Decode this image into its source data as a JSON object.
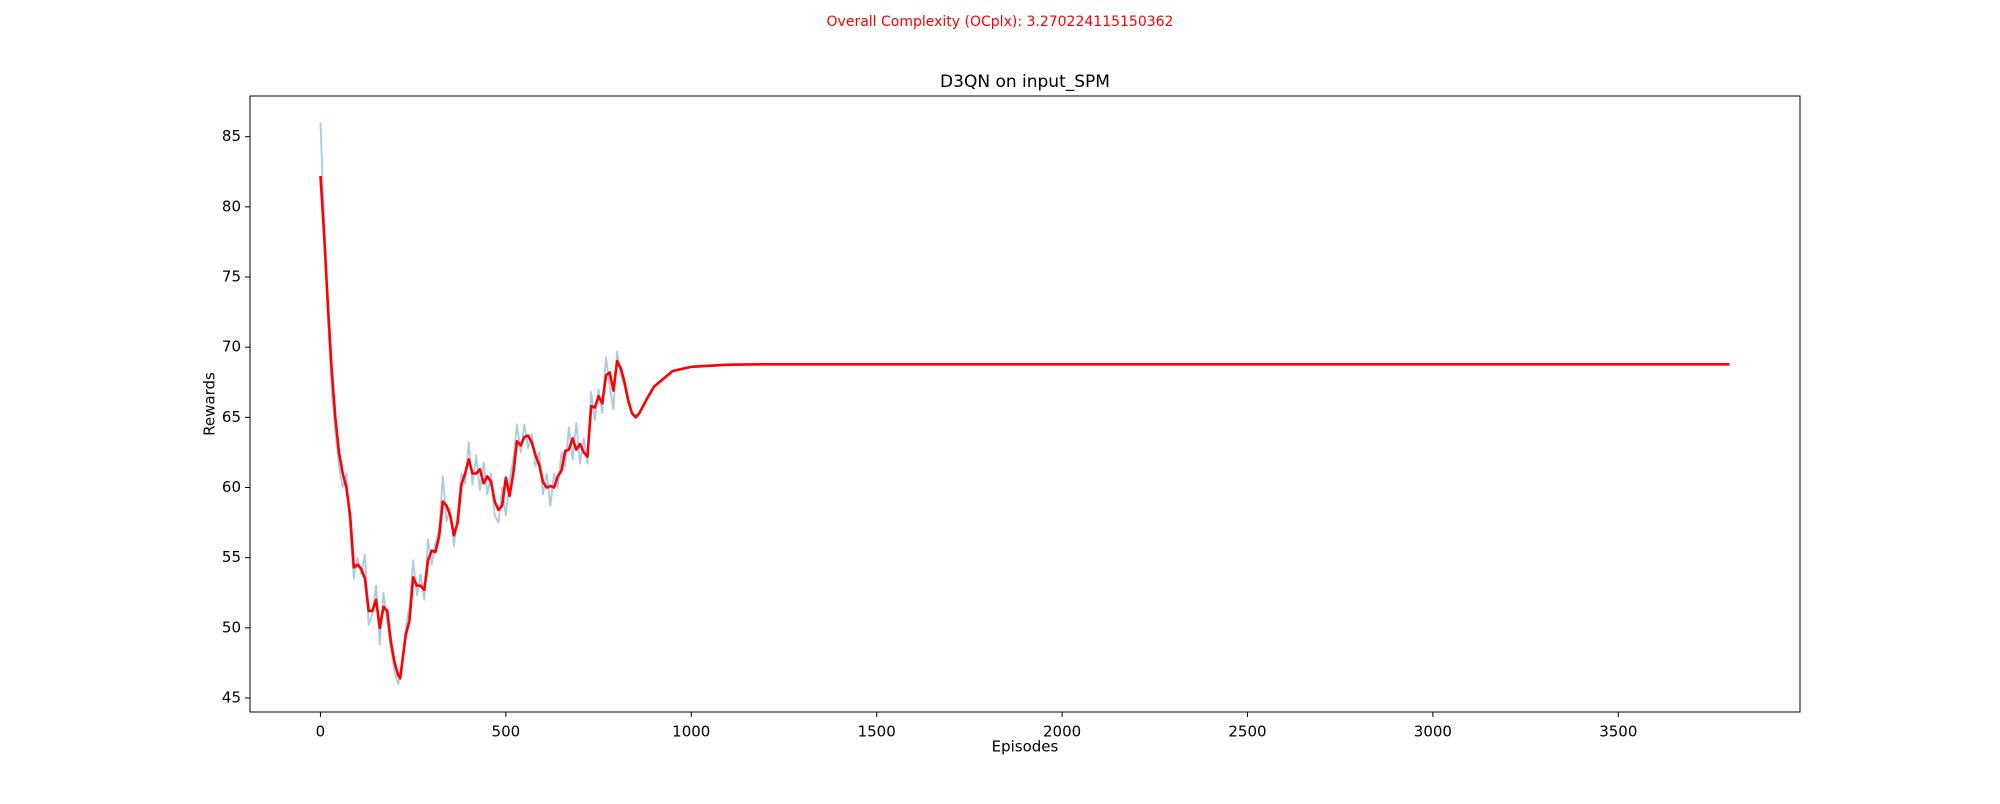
{
  "chart_data": {
    "type": "line",
    "suptitle": "Overall Complexity (OCplx): 3.270224115150362",
    "suptitle_color": "#ff0000",
    "title": "D3QN on input_SPM",
    "xlabel": "Episodes",
    "ylabel": "Rewards",
    "xlim": [
      -190,
      3990
    ],
    "ylim": [
      44,
      87.9
    ],
    "xticks": [
      0,
      500,
      1000,
      1500,
      2000,
      2500,
      3000,
      3500
    ],
    "yticks": [
      45,
      50,
      55,
      60,
      65,
      70,
      75,
      80,
      85
    ],
    "series": [
      {
        "color": "#a9c9e6",
        "x": [
          0,
          10,
          20,
          30,
          40,
          50,
          60,
          70,
          80,
          90,
          100,
          110,
          120,
          130,
          140,
          150,
          160,
          170,
          180,
          190,
          200,
          210,
          220,
          230,
          240,
          250,
          260,
          270,
          280,
          290,
          300,
          310,
          320,
          330,
          340,
          350,
          360,
          370,
          380,
          390,
          400,
          410,
          420,
          430,
          440,
          450,
          460,
          470,
          480,
          490,
          500,
          510,
          520,
          530,
          540,
          550,
          560,
          570,
          580,
          590,
          600,
          610,
          620,
          630,
          640,
          650,
          660,
          670,
          680,
          690,
          700,
          710,
          720,
          730,
          740,
          750,
          760,
          770,
          780,
          790,
          800,
          810,
          820,
          830,
          840
        ],
        "values": [
          86,
          79,
          72,
          67,
          64,
          61.5,
          60,
          61,
          57,
          53.5,
          55,
          53.8,
          55.2,
          50.2,
          51,
          53,
          48.8,
          52.5,
          50.5,
          48.5,
          46.8,
          46,
          47.5,
          50,
          51.5,
          54.8,
          52.3,
          53.8,
          52,
          56.3,
          54.5,
          56,
          57,
          60.8,
          57.6,
          58.5,
          55.8,
          58.2,
          61,
          60.3,
          63.2,
          60.2,
          62.3,
          59.8,
          61.8,
          59.5,
          61,
          58,
          57.5,
          60,
          58,
          60.5,
          62,
          64.5,
          62.5,
          64.5,
          62.8,
          63.8,
          61.5,
          62.5,
          59.5,
          61,
          58.7,
          61,
          60,
          62.5,
          61.5,
          64.3,
          62,
          64.6,
          61.7,
          63.5,
          61.7,
          66.8,
          64.8,
          67,
          65.3,
          69.3,
          67.2,
          65.6,
          69.7,
          68,
          67.2,
          66,
          65.5
        ]
      },
      {
        "color": "#ff0000",
        "x": [
          0,
          10,
          20,
          30,
          40,
          50,
          60,
          70,
          80,
          90,
          100,
          110,
          120,
          130,
          140,
          150,
          160,
          170,
          180,
          190,
          200,
          210,
          215,
          230,
          240,
          250,
          260,
          270,
          280,
          290,
          300,
          310,
          320,
          330,
          340,
          350,
          360,
          370,
          380,
          390,
          400,
          410,
          420,
          430,
          440,
          450,
          460,
          470,
          480,
          490,
          500,
          510,
          520,
          530,
          540,
          550,
          560,
          570,
          580,
          590,
          600,
          610,
          620,
          630,
          640,
          650,
          660,
          670,
          680,
          690,
          700,
          710,
          720,
          730,
          740,
          750,
          760,
          770,
          780,
          790,
          800,
          810,
          820,
          830,
          840,
          850,
          860,
          880,
          900,
          950,
          1000,
          1100,
          1200,
          3800
        ],
        "values": [
          82.2,
          78,
          73,
          68.5,
          65,
          62.5,
          61,
          60,
          58,
          54.3,
          54.5,
          54.2,
          53.5,
          51.2,
          51.2,
          52,
          50,
          51.5,
          51.2,
          49,
          47.5,
          46.6,
          46.4,
          49.5,
          50.5,
          53.6,
          53,
          53,
          52.7,
          54.8,
          55.5,
          55.4,
          56.5,
          59,
          58.7,
          58,
          56.6,
          57.5,
          60.2,
          61,
          62,
          61,
          61,
          61.3,
          60.3,
          60.8,
          60.4,
          59,
          58.4,
          58.7,
          60.7,
          59.4,
          61,
          63.3,
          63,
          63.6,
          63.7,
          63.2,
          62.3,
          61.6,
          60.4,
          60,
          60.1,
          60,
          60.8,
          61.2,
          62.6,
          62.7,
          63.5,
          62.7,
          63.1,
          62.5,
          62.2,
          65.8,
          65.7,
          66.5,
          66,
          68,
          68.2,
          66.9,
          69,
          68.5,
          67.5,
          66.2,
          65.3,
          65,
          65.3,
          66.3,
          67.2,
          68.3,
          68.6,
          68.75,
          68.78,
          68.78
        ]
      }
    ]
  }
}
